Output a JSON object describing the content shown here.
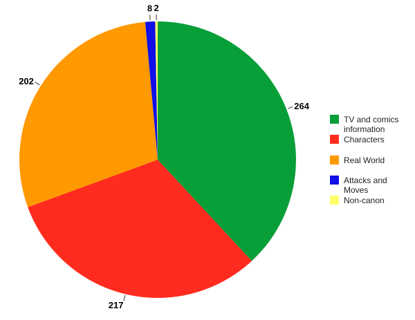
{
  "chart_data": {
    "type": "pie",
    "title": "",
    "legend_position": "right",
    "direction": "clockwise",
    "start_angle_deg": 0,
    "background_color": "#ffffff",
    "value_label_color": "#000000",
    "legend_text_color": "#222222",
    "slices": [
      {
        "label": "TV and comics information",
        "value": 264,
        "color": "#089E38"
      },
      {
        "label": "Characters",
        "value": 217,
        "color": "#FF2B1E"
      },
      {
        "label": "Real World",
        "value": 202,
        "color": "#FF9900"
      },
      {
        "label": "Attacks and Moves",
        "value": 8,
        "color": "#0F0FE6"
      },
      {
        "label": "Non-canon",
        "value": 2,
        "color": "#FFFF66"
      }
    ]
  }
}
